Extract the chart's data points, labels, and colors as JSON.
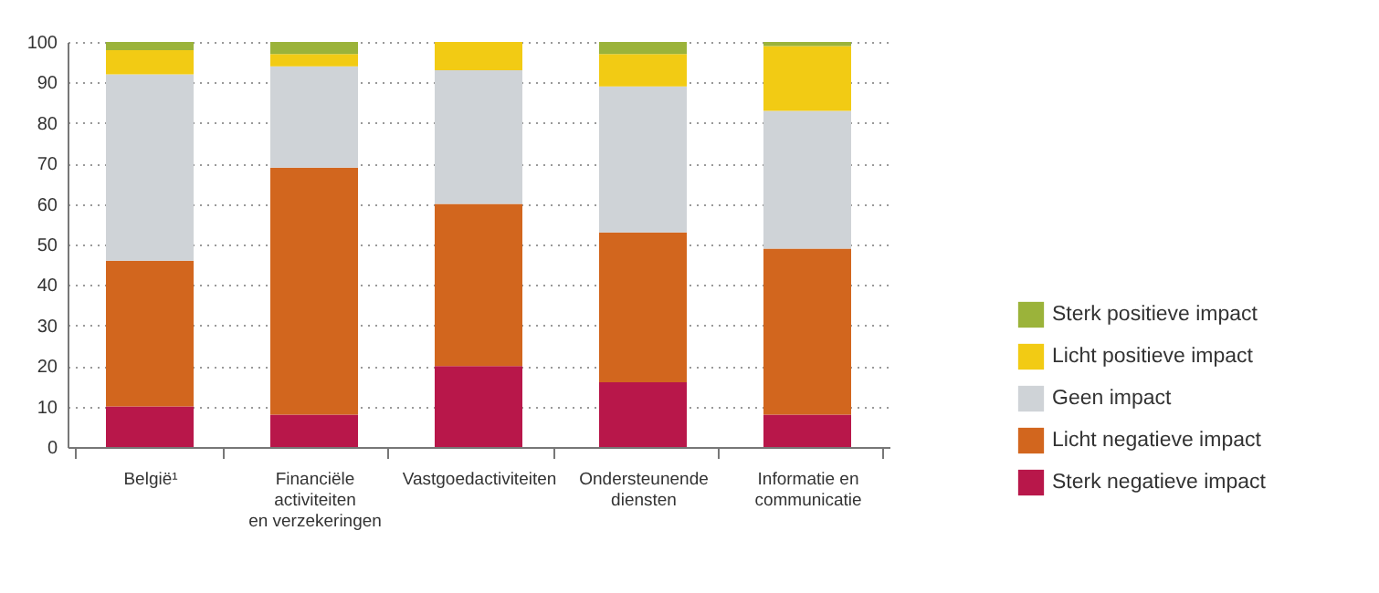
{
  "chart_data": {
    "type": "bar",
    "stacked": true,
    "categories": [
      "België¹",
      "Financiële\nactiviteiten\nen verzekeringen",
      "Vastgoedactiviteiten",
      "Ondersteunende\ndiensten",
      "Informatie en\ncommunicatie"
    ],
    "series": [
      {
        "name": "Sterk negatieve impact",
        "color": "#b8174a",
        "values": [
          10,
          8,
          20,
          16,
          8
        ]
      },
      {
        "name": "Licht negatieve impact",
        "color": "#d2661e",
        "values": [
          36,
          61,
          40,
          37,
          41
        ]
      },
      {
        "name": "Geen impact",
        "color": "#cfd3d7",
        "values": [
          46,
          25,
          33,
          36,
          34
        ]
      },
      {
        "name": "Licht positieve impact",
        "color": "#f2cb14",
        "values": [
          6,
          3,
          7,
          8,
          16
        ]
      },
      {
        "name": "Sterk positieve impact",
        "color": "#9bb33a",
        "values": [
          2,
          3,
          0,
          3,
          1
        ]
      }
    ],
    "ylim": [
      0,
      100
    ],
    "yticks": [
      0,
      10,
      20,
      30,
      40,
      50,
      60,
      70,
      80,
      90,
      100
    ],
    "grid": "y",
    "legend": "right"
  }
}
